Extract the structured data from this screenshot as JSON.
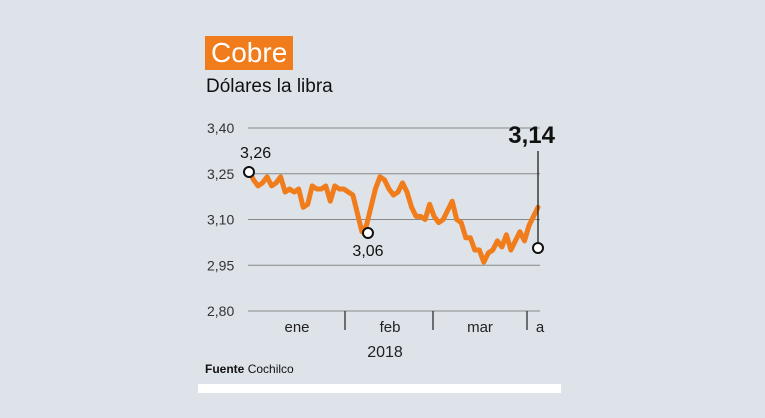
{
  "header": {
    "title": "Cobre",
    "subtitle": "Dólares la libra"
  },
  "colors": {
    "accent": "#f07c1c",
    "background": "#dde3e9",
    "grid": "#888888",
    "text": "#111111"
  },
  "chart_data": {
    "type": "line",
    "title": "Cobre",
    "subtitle": "Dólares la libra",
    "xlabel": "2018",
    "ylabel": "Dólares la libra",
    "ylim": [
      2.8,
      3.4
    ],
    "yticks": [
      "3,40",
      "3,25",
      "3,10",
      "2,95",
      "2,80"
    ],
    "xticks": [
      "ene",
      "feb",
      "mar",
      "a"
    ],
    "year_label": "2018",
    "grid": true,
    "annotations": [
      {
        "label": "3,26",
        "value": 3.26,
        "position": "start"
      },
      {
        "label": "3,06",
        "value": 3.06,
        "position": "feb low"
      },
      {
        "label": "3,14",
        "value": 3.14,
        "position": "latest"
      }
    ],
    "series": [
      {
        "name": "Cobre",
        "values": [
          3.26,
          3.23,
          3.21,
          3.22,
          3.24,
          3.21,
          3.22,
          3.24,
          3.19,
          3.2,
          3.19,
          3.2,
          3.14,
          3.15,
          3.21,
          3.2,
          3.2,
          3.21,
          3.16,
          3.21,
          3.2,
          3.2,
          3.19,
          3.18,
          3.12,
          3.06,
          3.08,
          3.14,
          3.2,
          3.24,
          3.23,
          3.2,
          3.18,
          3.19,
          3.22,
          3.19,
          3.14,
          3.11,
          3.11,
          3.1,
          3.15,
          3.11,
          3.09,
          3.1,
          3.13,
          3.16,
          3.1,
          3.09,
          3.04,
          3.04,
          3.0,
          3.0,
          2.96,
          2.99,
          3.0,
          3.03,
          3.01,
          3.05,
          3.0,
          3.03,
          3.06,
          3.03,
          3.08,
          3.11,
          3.14
        ]
      }
    ]
  },
  "footer": {
    "source_label": "Fuente",
    "source_value": "Cochilco"
  }
}
